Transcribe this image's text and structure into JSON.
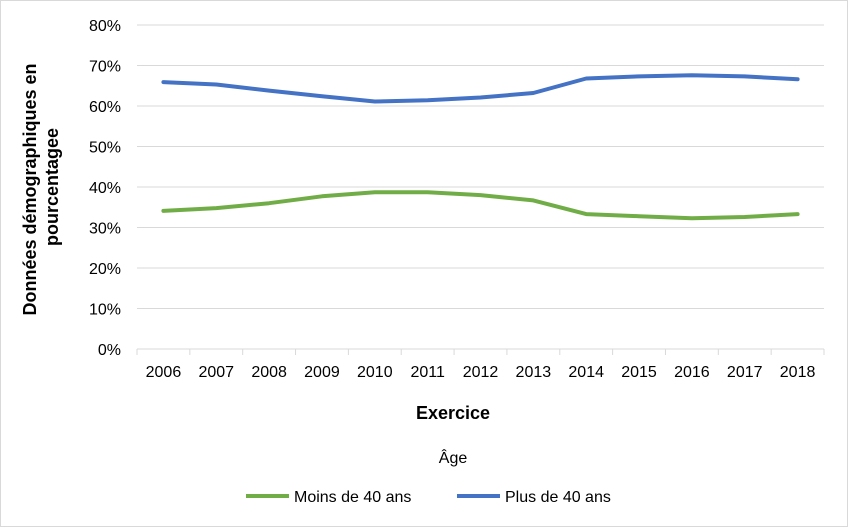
{
  "chart_data": {
    "type": "line",
    "title": "",
    "xlabel": "Exercice",
    "ylabel_lines": [
      "Données démographiques en",
      "pourcentagee"
    ],
    "categories": [
      "2006",
      "2007",
      "2008",
      "2009",
      "2010",
      "2011",
      "2012",
      "2013",
      "2014",
      "2015",
      "2016",
      "2017",
      "2018"
    ],
    "ylim": [
      0,
      0.8
    ],
    "yticks": [
      0,
      0.1,
      0.2,
      0.3,
      0.4,
      0.5,
      0.6,
      0.7,
      0.8
    ],
    "ytick_labels": [
      "0%",
      "10%",
      "20%",
      "30%",
      "40%",
      "50%",
      "60%",
      "70%",
      "80%"
    ],
    "grid": true,
    "legend_title": "Âge",
    "legend_position": "bottom",
    "series": [
      {
        "name": "Moins de 40 ans",
        "color": "#70AD47",
        "values": [
          0.341,
          0.348,
          0.36,
          0.377,
          0.387,
          0.387,
          0.38,
          0.367,
          0.333,
          0.328,
          0.323,
          0.326,
          0.333
        ]
      },
      {
        "name": "Plus de 40 ans",
        "color": "#4472C4",
        "values": [
          0.659,
          0.653,
          0.638,
          0.624,
          0.611,
          0.614,
          0.621,
          0.632,
          0.668,
          0.673,
          0.676,
          0.673,
          0.666
        ]
      }
    ]
  }
}
